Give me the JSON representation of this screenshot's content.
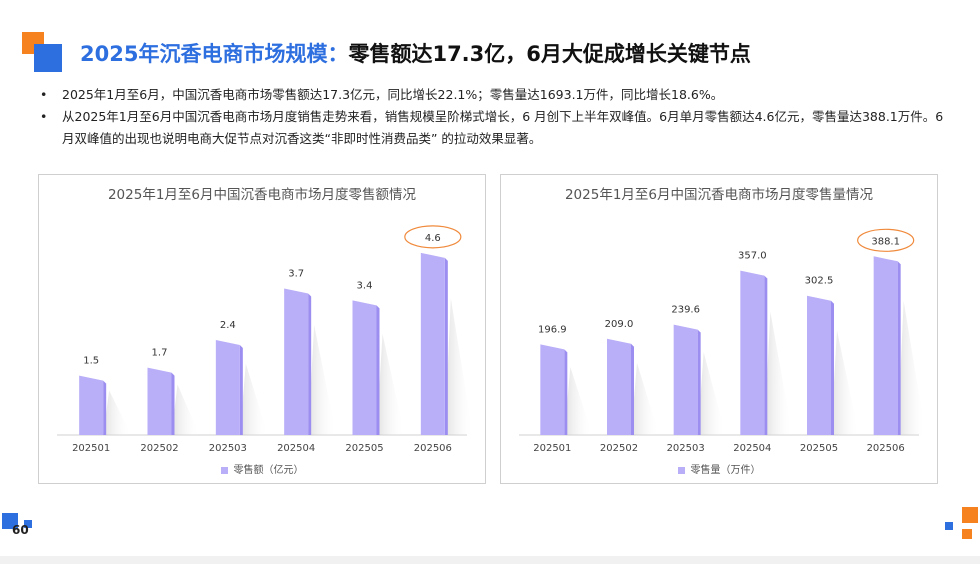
{
  "title": {
    "highlight": "2025年沉香电商市场规模：",
    "main": "零售额达17.3亿，6月大促成增长关键节点"
  },
  "bullets": [
    "2025年1月至6月，中国沉香电商市场零售额达17.3亿元，同比增长22.1%；零售量达1693.1万件，同比增长18.6%。",
    "从2025年1月至6月中国沉香电商市场月度销售走势来看，销售规模呈阶梯式增长，6 月创下上半年双峰值。6月单月零售额达4.6亿元，零售量达388.1万件。6 月双峰值的出现也说明电商大促节点对沉香这类“非即时性消费品类” 的拉动效果显著。"
  ],
  "page_number": "60",
  "colors": {
    "accent_blue": "#2e6fe0",
    "accent_orange": "#f5821f",
    "bar_face": "#b9aef8",
    "bar_side": "#9c8ef0",
    "highlight_ring": "#f08a3c"
  },
  "chart_data": [
    {
      "type": "bar",
      "title": "2025年1月至6月中国沉香电商市场月度零售额情况",
      "categories": [
        "202501",
        "202502",
        "202503",
        "202504",
        "202505",
        "202506"
      ],
      "series": [
        {
          "name": "零售额（亿元）",
          "values": [
            1.5,
            1.7,
            2.4,
            3.7,
            3.4,
            4.6
          ],
          "labels": [
            "1.5",
            "1.7",
            "2.4",
            "3.7",
            "3.4",
            "4.6"
          ]
        }
      ],
      "highlight_index": 5,
      "ylim": [
        0,
        5
      ],
      "legend_position": "bottom",
      "grid": false
    },
    {
      "type": "bar",
      "title": "2025年1月至6月中国沉香电商市场月度零售量情况",
      "categories": [
        "202501",
        "202502",
        "202503",
        "202504",
        "202505",
        "202506"
      ],
      "series": [
        {
          "name": "零售量（万件）",
          "values": [
            196.9,
            209.0,
            239.6,
            357.0,
            302.5,
            388.1
          ],
          "labels": [
            "196.9",
            "209.0",
            "239.6",
            "357.0",
            "302.5",
            "388.1"
          ]
        }
      ],
      "highlight_index": 5,
      "ylim": [
        0,
        430
      ],
      "legend_position": "bottom",
      "grid": false
    }
  ]
}
